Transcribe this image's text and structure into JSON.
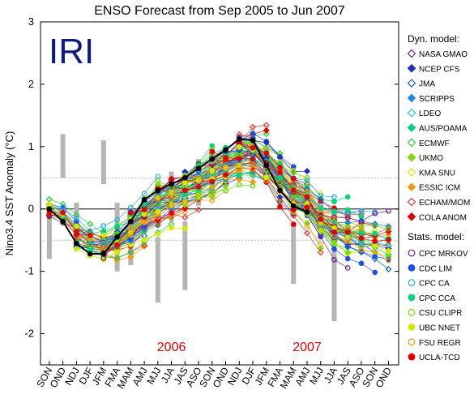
{
  "chart_data": {
    "type": "line",
    "title": "ENSO Forecast from Sep 2005 to Jun 2007",
    "ylabel": "Nino3.4 SST Anomaly (°C)",
    "xlabel": "",
    "logo_text": "IRI",
    "ylim": [
      -2.5,
      3
    ],
    "yticks": [
      -2,
      -1,
      0,
      1,
      2,
      3
    ],
    "grid": false,
    "x": [
      "SON",
      "OND",
      "NDJ",
      "DJF",
      "JFM",
      "FMA",
      "MAM",
      "AMJ",
      "MJJ",
      "JJA",
      "JAS",
      "ASO",
      "SON",
      "OND",
      "NDJ",
      "DJF",
      "JFM",
      "FMA",
      "MAM",
      "AMJ",
      "MJJ",
      "JJA",
      "JAS",
      "ASO",
      "SON",
      "OND"
    ],
    "year_labels": [
      {
        "text": "2006",
        "at": "JJA"
      },
      {
        "text": "2007",
        "at": "AMJ"
      }
    ],
    "legend": {
      "placement": "right",
      "dyn_header": "Dyn. model:",
      "stat_header": "Stats. model:",
      "dyn": [
        {
          "name": "NASA GMAO",
          "color": "#6a1b9a",
          "marker": "diamond-open"
        },
        {
          "name": "NCEP CFS",
          "color": "#1f2fbf",
          "marker": "diamond"
        },
        {
          "name": "JMA",
          "color": "#1565c0",
          "marker": "diamond-open"
        },
        {
          "name": "SCRIPPS",
          "color": "#1e88e5",
          "marker": "diamond"
        },
        {
          "name": "LDEO",
          "color": "#1ec8d8",
          "marker": "diamond-open"
        },
        {
          "name": "AUS/POAMA",
          "color": "#00d47a",
          "marker": "diamond"
        },
        {
          "name": "ECMWF",
          "color": "#2ecc40",
          "marker": "diamond-open"
        },
        {
          "name": "UKMO",
          "color": "#7cdc00",
          "marker": "diamond"
        },
        {
          "name": "KMA SNU",
          "color": "#d4e800",
          "marker": "diamond-open"
        },
        {
          "name": "ESSIC ICM",
          "color": "#f39c12",
          "marker": "diamond"
        },
        {
          "name": "ECHAM/MOM",
          "color": "#e53935",
          "marker": "diamond-open"
        },
        {
          "name": "COLA ANOM",
          "color": "#e00000",
          "marker": "diamond"
        }
      ],
      "stat": [
        {
          "name": "CPC MRKOV",
          "color": "#6a1b9a",
          "marker": "circle-open"
        },
        {
          "name": "CDC LIM",
          "color": "#1f4fe0",
          "marker": "circle"
        },
        {
          "name": "CPC CA",
          "color": "#1eb0e0",
          "marker": "circle-open"
        },
        {
          "name": "CPC CCA",
          "color": "#00d47a",
          "marker": "circle"
        },
        {
          "name": "CSU CLIPR",
          "color": "#6adc00",
          "marker": "circle-open"
        },
        {
          "name": "UBC NNET",
          "color": "#d4e800",
          "marker": "circle"
        },
        {
          "name": "FSU REGR",
          "color": "#f39c12",
          "marker": "circle-open"
        },
        {
          "name": "UCLA-TCD",
          "color": "#e00000",
          "marker": "circle"
        }
      ]
    },
    "observed": {
      "color": "#000000",
      "values": [
        0.0,
        -0.2,
        -0.55,
        -0.72,
        -0.72,
        -0.45,
        -0.2,
        0.15,
        0.3,
        0.4,
        0.5,
        0.65,
        0.8,
        0.95,
        1.12,
        1.1,
        0.7,
        0.3,
        0.05,
        -0.05
      ]
    },
    "spread_bars": {
      "color": "#b5b5b5",
      "ranges": [
        {
          "x": "SON",
          "lo": -0.8,
          "hi": 0.05
        },
        {
          "x": "NDJ",
          "lo": -0.6,
          "hi": 0.1
        },
        {
          "x": "FMA",
          "lo": -1.0,
          "hi": 0.1
        },
        {
          "x": "MAM",
          "lo": -0.9,
          "hi": -0.2
        },
        {
          "x": "JJA",
          "lo": -0.2,
          "hi": 0.6
        },
        {
          "x": "ASO",
          "lo": 0.05,
          "hi": 0.8
        },
        {
          "x": "OND",
          "lo": 0.5,
          "hi": 1.2
        },
        {
          "x": "JFM",
          "lo": 0.4,
          "hi": 1.1
        },
        {
          "x": "MAM",
          "lo": -1.2,
          "hi": -0.25,
          "year": 2
        },
        {
          "x": "MJJ",
          "lo": -1.5,
          "hi": -0.45
        },
        {
          "x": "JJA",
          "lo": -1.8,
          "hi": -0.5,
          "year": 2
        },
        {
          "x": "JAS",
          "lo": -1.3,
          "hi": -0.2
        }
      ]
    },
    "forecast_start_indices": [
      0,
      2,
      4,
      6,
      8,
      10,
      12,
      14,
      16,
      18
    ]
  }
}
